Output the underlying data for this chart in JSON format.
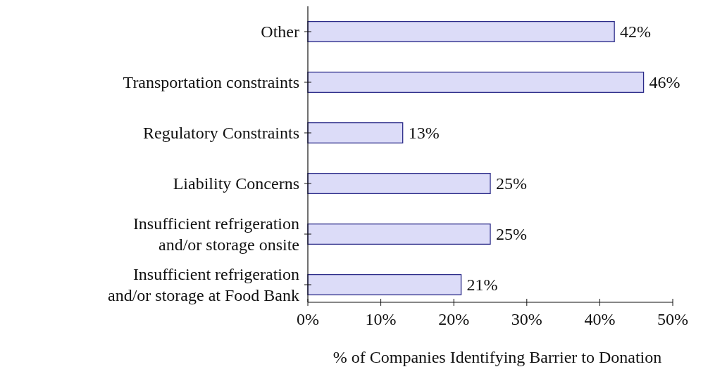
{
  "chart_data": {
    "type": "bar",
    "orientation": "horizontal",
    "xlabel": "% of Companies Identifying Barrier to Donation",
    "categories": [
      "Other",
      "Transportation constraints",
      "Regulatory Constraints",
      "Liability Concerns",
      "Insufficient refrigeration\nand/or storage onsite",
      "Insufficient refrigeration\nand/or storage at Food Bank"
    ],
    "values": [
      42,
      46,
      13,
      25,
      25,
      21
    ],
    "value_labels": [
      "42%",
      "46%",
      "13%",
      "25%",
      "25%",
      "21%"
    ],
    "color": "#dcdcf8",
    "xlim": [
      0,
      50
    ],
    "xticks": [
      {
        "value": 0,
        "label": "0%"
      },
      {
        "value": 10,
        "label": "10%"
      },
      {
        "value": 20,
        "label": "20%"
      },
      {
        "value": 30,
        "label": "30%"
      },
      {
        "value": 40,
        "label": "40%"
      },
      {
        "value": 50,
        "label": "50%"
      }
    ],
    "grid": false
  }
}
